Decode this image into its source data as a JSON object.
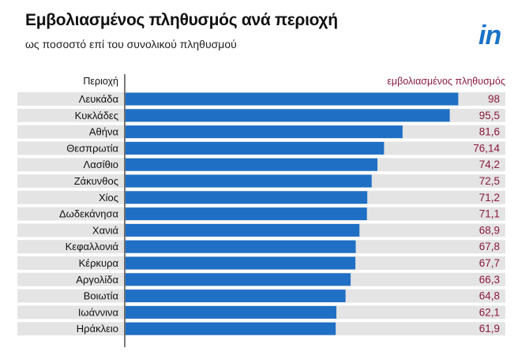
{
  "title": "Εμβολιασμένος πληθυσμός ανά περιοχή",
  "subtitle": "ως ποσοστό επί του συνολικού πληθυσμού",
  "logo": "in",
  "colors": {
    "bar": "#1f6fc5",
    "stripe": "#e4e4e4",
    "value_text": "#8a1a3c",
    "logo": "#1a73c9"
  },
  "chart_data": {
    "type": "bar",
    "orientation": "horizontal",
    "title": "Εμβολιασμένος πληθυσμός ανά περιοχή",
    "subtitle": "ως ποσοστό επί του συνολικού πληθυσμού",
    "xlabel": "εμβολιασμένος πληθυσμός",
    "ylabel": "Περιοχή",
    "xlim": [
      0,
      100
    ],
    "categories": [
      "Λευκάδα",
      "Κυκλάδες",
      "Αθήνα",
      "Θεσπρωτία",
      "Λασίθιο",
      "Ζάκυνθος",
      "Χίος",
      "Δωδεκάνησα",
      "Χανιά",
      "Κεφαλλονιά",
      "Κέρκυρα",
      "Αργολίδα",
      "Βοιωτία",
      "Ιωάννινα",
      "Ηράκλειο"
    ],
    "values": [
      98,
      95.5,
      81.6,
      76.14,
      74.2,
      72.5,
      71.2,
      71.1,
      68.9,
      67.8,
      67.7,
      66.3,
      64.8,
      62.1,
      61.9
    ],
    "value_labels": [
      "98",
      "95,5",
      "81,6",
      "76,14",
      "74,2",
      "72,5",
      "71,2",
      "71,1",
      "68,9",
      "67,8",
      "67,7",
      "66,3",
      "64,8",
      "62,1",
      "61,9"
    ]
  }
}
